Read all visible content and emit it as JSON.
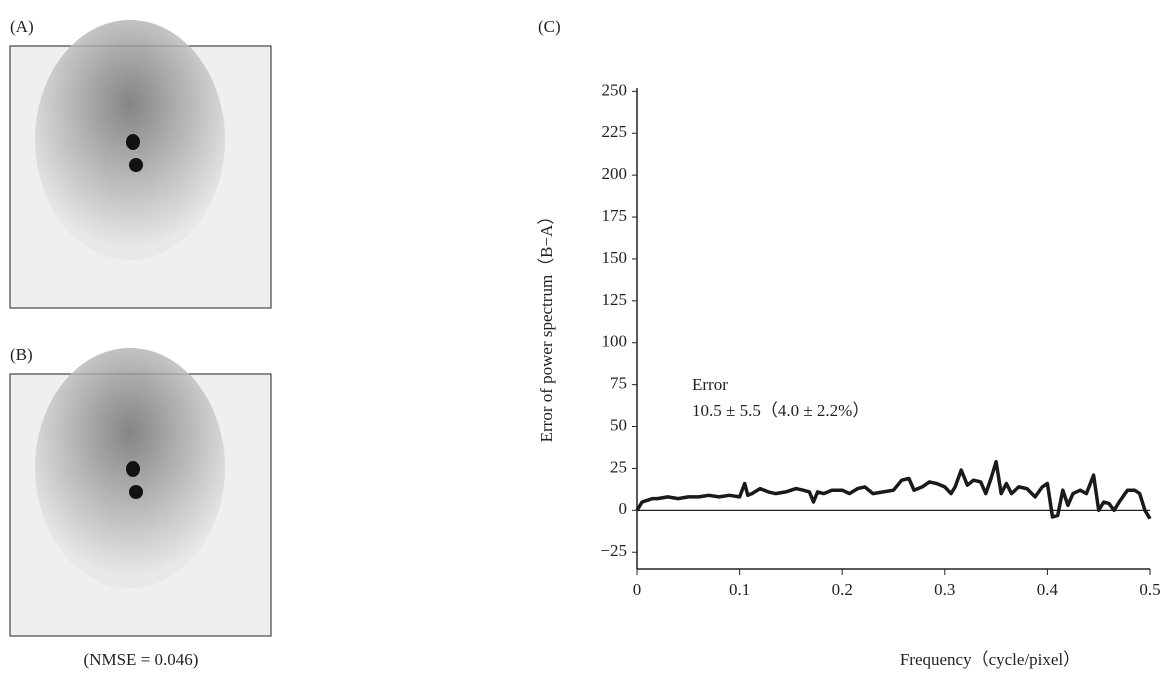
{
  "panels": {
    "a_label": "(A)",
    "b_label": "(B)",
    "nmse": "(NMSE = 0.046)"
  },
  "chart_data": {
    "type": "line",
    "title": "(C)",
    "x_label": "Frequency（cycle/pixel）",
    "y_label": "Error of power spectrum（B−A）",
    "annotation": {
      "title": "Error",
      "text": "10.5 ± 5.5（4.0 ± 2.2%）"
    },
    "x": [
      0,
      0.005,
      0.01,
      0.015,
      0.02,
      0.03,
      0.04,
      0.05,
      0.06,
      0.07,
      0.08,
      0.09,
      0.1,
      0.105,
      0.108,
      0.112,
      0.12,
      0.128,
      0.135,
      0.145,
      0.155,
      0.162,
      0.168,
      0.172,
      0.176,
      0.182,
      0.19,
      0.2,
      0.207,
      0.215,
      0.222,
      0.23,
      0.24,
      0.25,
      0.258,
      0.265,
      0.27,
      0.278,
      0.285,
      0.292,
      0.3,
      0.306,
      0.31,
      0.316,
      0.322,
      0.328,
      0.335,
      0.34,
      0.345,
      0.35,
      0.355,
      0.36,
      0.365,
      0.372,
      0.38,
      0.388,
      0.395,
      0.4,
      0.405,
      0.41,
      0.415,
      0.42,
      0.425,
      0.432,
      0.438,
      0.445,
      0.45,
      0.455,
      0.46,
      0.465,
      0.47,
      0.478,
      0.485,
      0.49,
      0.495,
      0.5
    ],
    "series": [
      {
        "color": "#1a1a1a",
        "values": [
          0,
          5,
          6,
          7,
          7,
          8,
          7,
          8,
          8,
          9,
          8,
          9,
          8,
          16,
          9,
          10,
          13,
          11,
          10,
          11,
          13,
          12,
          11,
          5,
          11,
          10,
          12,
          12,
          10,
          13,
          14,
          10,
          11,
          12,
          18,
          19,
          12,
          14,
          17,
          16,
          14,
          10,
          14,
          24,
          15,
          18,
          17,
          10,
          19,
          29,
          10,
          16,
          10,
          14,
          13,
          8,
          14,
          16,
          -4,
          -3,
          12,
          3,
          10,
          12,
          10,
          21,
          0,
          5,
          4,
          0,
          5,
          12,
          12,
          10,
          0,
          -5
        ]
      }
    ],
    "hline": 0,
    "xlim": [
      0,
      0.5
    ],
    "xticks": [
      0,
      0.1,
      0.2,
      0.3,
      0.4,
      0.5
    ],
    "ylim": [
      -35,
      252
    ],
    "yticks": [
      {
        "value": -25,
        "label": "−25"
      },
      0,
      25,
      50,
      75,
      100,
      125,
      150,
      175,
      200,
      225,
      250
    ]
  }
}
